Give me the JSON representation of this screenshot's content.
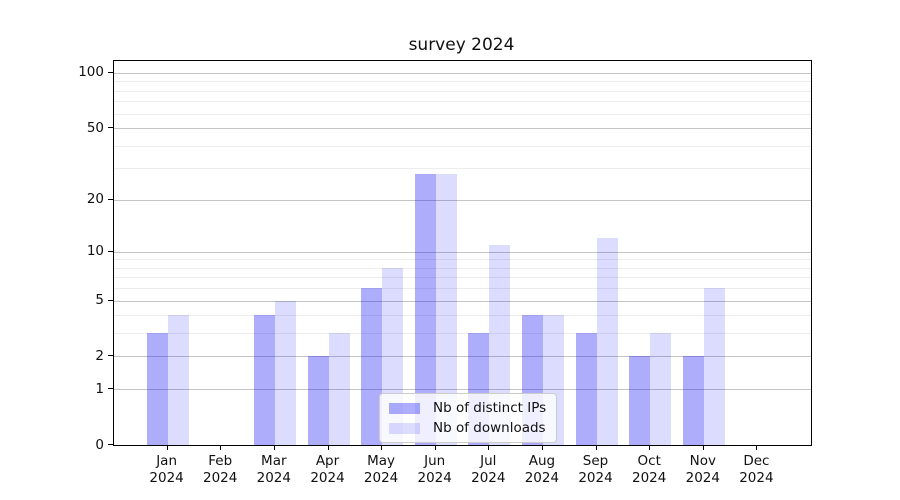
{
  "figure": {
    "title": "survey 2024",
    "background": "#ffffff"
  },
  "chart_data": {
    "type": "bar",
    "title": "survey 2024",
    "categories": [
      "Jan 2024",
      "Feb 2024",
      "Mar 2024",
      "Apr 2024",
      "May 2024",
      "Jun 2024",
      "Jul 2024",
      "Aug 2024",
      "Sep 2024",
      "Oct 2024",
      "Nov 2024",
      "Dec 2024"
    ],
    "series": [
      {
        "name": "Nb of distinct IPs",
        "values": [
          3,
          0,
          4,
          2,
          6,
          28,
          3,
          4,
          3,
          2,
          2,
          0
        ],
        "color": "rgba(20, 20, 245, 0.35)",
        "solid_hex": "#a8a8f8"
      },
      {
        "name": "Nb of downloads",
        "values": [
          4,
          0,
          5,
          3,
          8,
          28,
          11,
          4,
          12,
          3,
          6,
          0
        ],
        "color": "rgba(20, 20, 245, 0.15)",
        "solid_hex": "#d9d9fb"
      }
    ],
    "xlabel": "",
    "ylabel": "",
    "yscale": "log1p",
    "ylim": [
      0,
      116
    ],
    "yticks": [
      0,
      1,
      2,
      5,
      10,
      20,
      50,
      100
    ],
    "yticks_minor": [
      3,
      4,
      6,
      7,
      8,
      9,
      30,
      40,
      60,
      70,
      80,
      90
    ],
    "grid": "horizontal major+minor",
    "legend": {
      "labels": [
        "Nb of distinct IPs",
        "Nb of downloads"
      ],
      "position": "lower center inside"
    }
  },
  "colors": {
    "grid_major": "#c4c4c4",
    "grid_minor": "#ececec",
    "axis": "#000000",
    "legend_border": "#cccccc",
    "text": "#111111"
  }
}
